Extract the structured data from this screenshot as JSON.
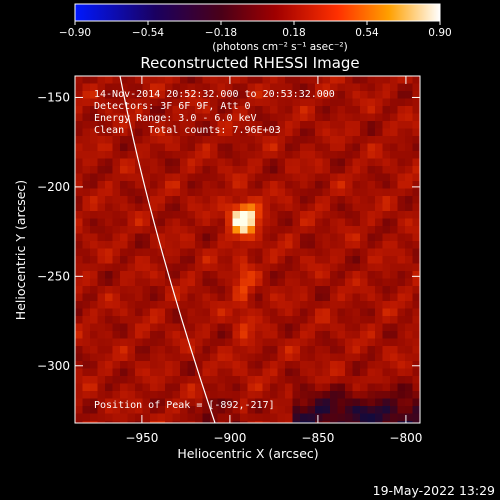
{
  "chart_data": {
    "type": "heatmap",
    "title": "Reconstructed RHESSI Image",
    "xlabel": "Heliocentric X (arcsec)",
    "ylabel": "Heliocentric Y (arcsec)",
    "xlim": [
      -988,
      -792
    ],
    "ylim": [
      -332,
      -138
    ],
    "x_ticks": [
      -950,
      -900,
      -850,
      -800
    ],
    "y_ticks": [
      -150,
      -200,
      -250,
      -300
    ],
    "x_tick_labels": [
      "-950",
      "-900",
      "-850",
      "-800"
    ],
    "y_tick_labels": [
      "-150",
      "-200",
      "-250",
      "-300"
    ],
    "colorbar": {
      "range": [
        -0.9,
        0.9
      ],
      "ticks": [
        -0.9,
        -0.54,
        -0.18,
        0.18,
        0.54,
        0.9
      ],
      "tick_labels": [
        "-0.90",
        "-0.54",
        "-0.18",
        "0.18",
        "0.54",
        "0.90"
      ],
      "units_label": "(photons cm⁻² s⁻¹ asec⁻²)"
    },
    "peak": {
      "x": -892,
      "y": -217
    },
    "annotations": [
      "14-Nov-2014 20:52:32.000 to 20:53:32.000",
      "Detectors: 3F 6F 9F, Att 0",
      "Energy Range: 3.0 - 6.0 keV",
      "Clean    Total counts: 7.96E+03"
    ],
    "peak_label": "Position of Peak = [-892,-217]",
    "limb_line": true
  },
  "footer": {
    "timestamp": "19-May-2022 13:29"
  }
}
